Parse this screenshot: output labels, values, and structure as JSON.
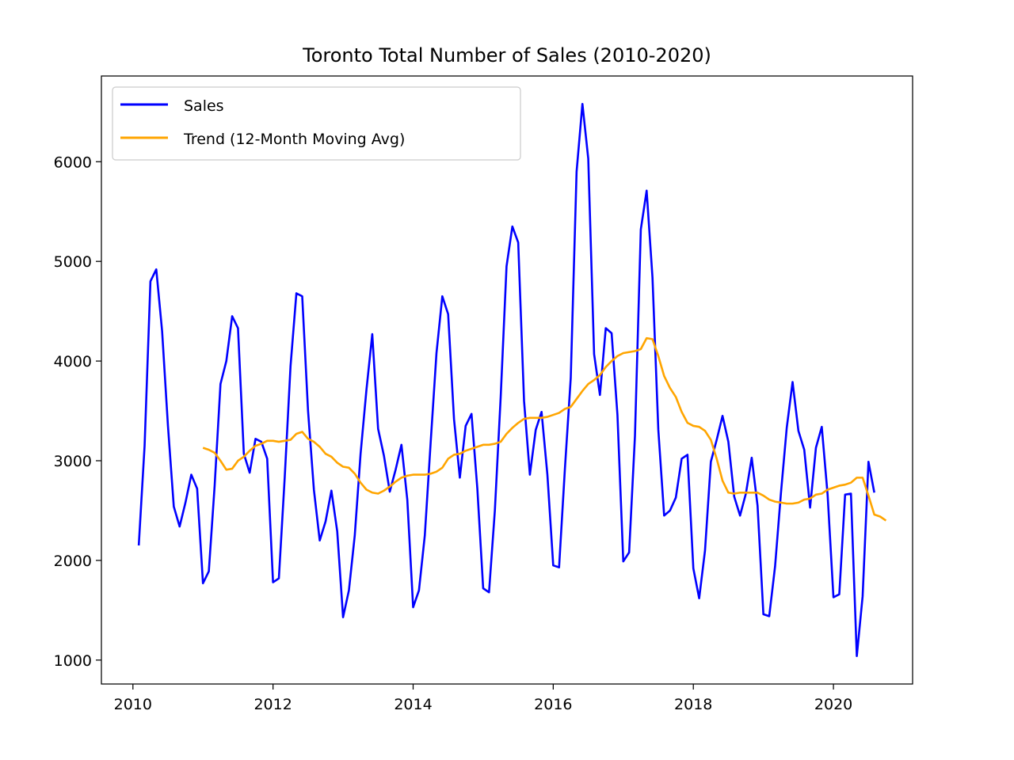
{
  "chart_data": {
    "type": "line",
    "title": "Toronto Total Number of Sales (2010-2020)",
    "xlabel": "",
    "ylabel": "",
    "x_start": "2010-02",
    "x_unit": "month",
    "xlim": [
      2009.55,
      2021.13
    ],
    "ylim": [
      760,
      6860
    ],
    "xticks": [
      2010,
      2012,
      2014,
      2016,
      2018,
      2020
    ],
    "yticks": [
      1000,
      2000,
      3000,
      4000,
      5000,
      6000
    ],
    "grid": false,
    "legend": {
      "placement": "top-left"
    },
    "series": [
      {
        "name": "Sales",
        "color": "#0000ff",
        "values": [
          2150,
          3150,
          4800,
          4920,
          4300,
          3350,
          2540,
          2340,
          2580,
          2860,
          2720,
          1770,
          1890,
          2750,
          3770,
          4000,
          4450,
          4330,
          3070,
          2880,
          3220,
          3190,
          3020,
          1780,
          1820,
          2830,
          3950,
          4680,
          4650,
          3500,
          2710,
          2200,
          2390,
          2700,
          2290,
          1430,
          1700,
          2250,
          3070,
          3710,
          4270,
          3320,
          3050,
          2690,
          2910,
          3160,
          2610,
          1530,
          1700,
          2250,
          3180,
          4080,
          4650,
          4470,
          3420,
          2830,
          3350,
          3470,
          2720,
          1720,
          1680,
          2500,
          3640,
          4950,
          5350,
          5190,
          3600,
          2860,
          3310,
          3490,
          2860,
          1950,
          1930,
          2920,
          3830,
          5900,
          6580,
          6030,
          4070,
          3660,
          4330,
          4280,
          3460,
          1990,
          2080,
          3250,
          5320,
          5710,
          4840,
          3310,
          2450,
          2500,
          2630,
          3020,
          3060,
          1920,
          1620,
          2100,
          2990,
          3210,
          3450,
          3190,
          2640,
          2450,
          2670,
          3030,
          2550,
          1460,
          1440,
          1940,
          2670,
          3330,
          3790,
          3300,
          3110,
          2530,
          3130,
          3340,
          2660,
          1630,
          1660,
          2660,
          2670,
          1040,
          1640,
          2990,
          2680
        ]
      },
      {
        "name": "Trend (12-Month Moving Avg)",
        "color": "#ffa500",
        "values": [
          null,
          null,
          null,
          null,
          null,
          null,
          null,
          null,
          null,
          null,
          null,
          3130,
          3110,
          3080,
          3000,
          2910,
          2920,
          3000,
          3040,
          3100,
          3150,
          3170,
          3200,
          3200,
          3190,
          3200,
          3210,
          3270,
          3290,
          3220,
          3190,
          3140,
          3070,
          3040,
          2980,
          2940,
          2930,
          2870,
          2780,
          2710,
          2680,
          2670,
          2700,
          2740,
          2790,
          2830,
          2850,
          2860,
          2860,
          2860,
          2870,
          2890,
          2930,
          3020,
          3060,
          3070,
          3100,
          3120,
          3140,
          3160,
          3160,
          3170,
          3190,
          3270,
          3330,
          3380,
          3420,
          3430,
          3430,
          3430,
          3440,
          3460,
          3480,
          3520,
          3540,
          3620,
          3700,
          3770,
          3810,
          3860,
          3940,
          4000,
          4050,
          4080,
          4090,
          4100,
          4120,
          4230,
          4220,
          4050,
          3850,
          3730,
          3640,
          3490,
          3380,
          3350,
          3340,
          3300,
          3210,
          3020,
          2800,
          2680,
          2670,
          2680,
          2680,
          2680,
          2680,
          2650,
          2610,
          2590,
          2580,
          2570,
          2570,
          2580,
          2610,
          2620,
          2660,
          2670,
          2710,
          2730,
          2750,
          2760,
          2780,
          2830,
          2830,
          2650,
          2460,
          2440,
          2400
        ]
      }
    ]
  }
}
